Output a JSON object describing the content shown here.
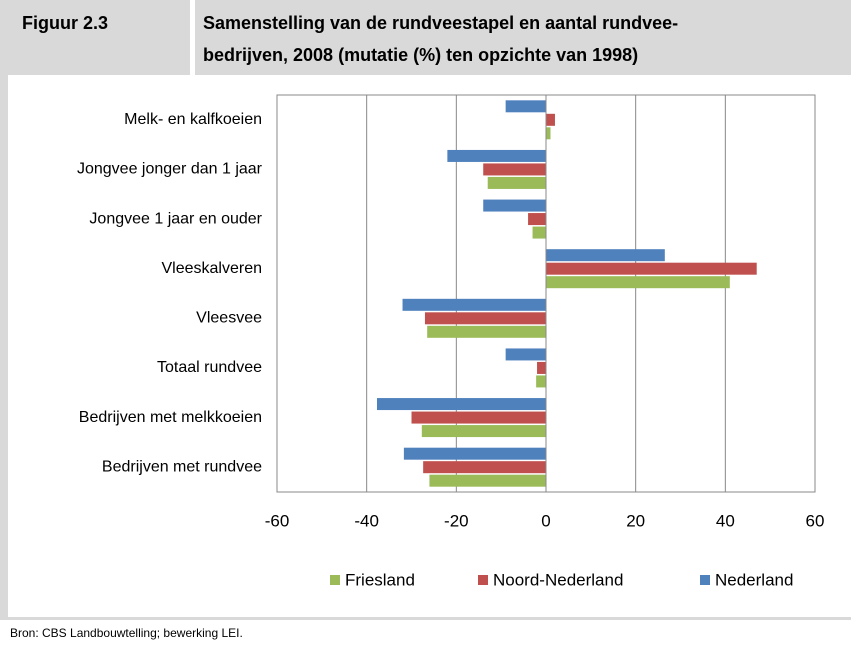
{
  "header": {
    "label": "Figuur 2.3",
    "title_lines": [
      "Samenstelling van de rundveestapel en aantal rundvee-",
      "bedrijven, 2008 (mutatie (%) ten opzichte van 1998)"
    ]
  },
  "chart_data": {
    "type": "bar",
    "orientation": "horizontal",
    "categories": [
      "Melk- en kalfkoeien",
      "Jongvee jonger dan 1 jaar",
      "Jongvee 1 jaar en ouder",
      "Vleeskalveren",
      "Vleesvee",
      "Totaal rundvee",
      "Bedrijven met melkkoeien",
      "Bedrijven met rundvee"
    ],
    "series": [
      {
        "name": "Friesland",
        "color": "#9bbb59",
        "values": [
          1,
          -13,
          -3,
          41,
          -26.5,
          -2.2,
          -27.7,
          -26
        ]
      },
      {
        "name": "Noord-Nederland",
        "color": "#c0504d",
        "values": [
          2,
          -14,
          -4,
          47,
          -27,
          -2,
          -30,
          -27.4
        ]
      },
      {
        "name": "Nederland",
        "color": "#4f81bd",
        "values": [
          -9,
          -22,
          -14,
          26.5,
          -32,
          -9,
          -37.7,
          -31.7
        ]
      }
    ],
    "xlim": [
      -60,
      60
    ],
    "xticks": [
      -60,
      -40,
      -20,
      0,
      20,
      40,
      60
    ],
    "grid": true,
    "legend": "bottom"
  },
  "footer": "Bron: CBS Landbouwtelling; bewerking LEI."
}
